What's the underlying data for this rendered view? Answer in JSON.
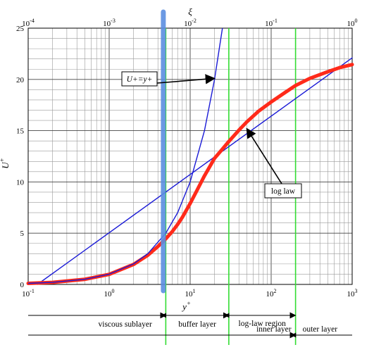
{
  "chart_data": {
    "type": "line",
    "xscale": "log",
    "x_axis_bottom": {
      "label": "y",
      "label_superscript": "+",
      "range": [
        0.1,
        1000
      ],
      "ticks": [
        {
          "value": 0.1,
          "base": "10",
          "exp": "-1"
        },
        {
          "value": 1,
          "base": "10",
          "exp": "0"
        },
        {
          "value": 10,
          "base": "10",
          "exp": "1"
        },
        {
          "value": 100,
          "base": "10",
          "exp": "2"
        },
        {
          "value": 1000,
          "base": "10",
          "exp": "3"
        }
      ]
    },
    "x_axis_top": {
      "label": "ξ",
      "range": [
        0.0001,
        1
      ],
      "ticks": [
        {
          "value": 0.0001,
          "base": "10",
          "exp": "-4"
        },
        {
          "value": 0.001,
          "base": "10",
          "exp": "-3"
        },
        {
          "value": 0.01,
          "base": "10",
          "exp": "-2"
        },
        {
          "value": 0.1,
          "base": "10",
          "exp": "-1"
        },
        {
          "value": 1,
          "base": "10",
          "exp": "0"
        }
      ]
    },
    "y_axis": {
      "label": "U",
      "label_superscript": "+",
      "range": [
        0,
        25
      ],
      "ticks": [
        "0",
        "5",
        "10",
        "15",
        "20",
        "25"
      ]
    },
    "grid": true,
    "series": [
      {
        "color": "#ff2a1a",
        "x": [
          0.1,
          0.2,
          0.5,
          1,
          2,
          3,
          4,
          5,
          6,
          7,
          8,
          10,
          12,
          15,
          20,
          25,
          30,
          40,
          50,
          70,
          100,
          150,
          200,
          300,
          500,
          700,
          1000
        ],
        "y": [
          0.1,
          0.2,
          0.5,
          0.98,
          1.95,
          2.85,
          3.7,
          4.45,
          5.15,
          5.85,
          6.55,
          7.9,
          9.1,
          10.6,
          12.3,
          13.2,
          13.95,
          15.05,
          15.85,
          16.9,
          17.8,
          18.75,
          19.4,
          20.1,
          20.75,
          21.15,
          21.45
        ]
      },
      {
        "color": "#1a1ad6",
        "name": "U+=y+",
        "x": [
          0.1,
          0.2,
          0.5,
          1,
          2,
          3,
          5,
          7,
          10,
          15,
          20,
          25
        ],
        "y": [
          0.1,
          0.2,
          0.5,
          1,
          2,
          3,
          5,
          7,
          10,
          15,
          20,
          25
        ]
      },
      {
        "color": "#1a1ad6",
        "name": "log law",
        "x": [
          0.13,
          1000
        ],
        "y": [
          0,
          22.1
        ]
      }
    ],
    "vertical_markers": [
      {
        "x": 5,
        "color": "#5b8fe0",
        "style": "thick"
      },
      {
        "x": 5,
        "color": "#33dd33"
      },
      {
        "x": 30,
        "color": "#33dd33"
      },
      {
        "x": 200,
        "color": "#33dd33"
      }
    ],
    "annotations": [
      {
        "text": "U+=y+",
        "points_to": [
          20,
          20.1
        ]
      },
      {
        "text": "log law",
        "points_to": [
          50,
          15.2
        ]
      }
    ],
    "regions": [
      {
        "text": "viscous sublayer",
        "x_from": 0.1,
        "x_to": 5
      },
      {
        "text": "buffer layer",
        "x_from": 5,
        "x_to": 30
      },
      {
        "text": "log-law region",
        "x_from": 30,
        "x_to": 200
      },
      {
        "text": "inner layer",
        "x_from": 0.1,
        "x_to": 200
      },
      {
        "text": "outer layer",
        "x_from": 200,
        "x_to": 1000
      }
    ]
  }
}
